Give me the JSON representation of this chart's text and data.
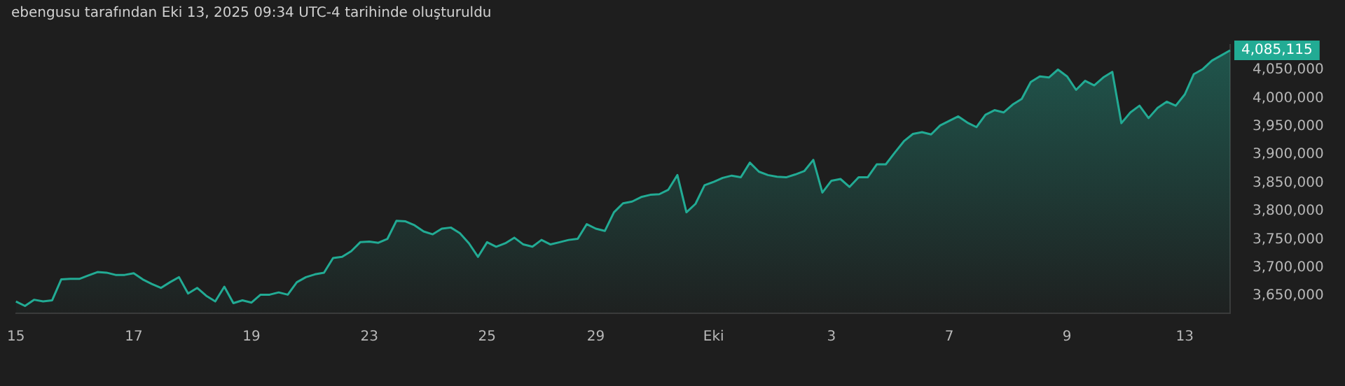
{
  "chart_data": {
    "type": "area",
    "title": "ebengusu tarafından Eki 13, 2025 09:34 UTC-4 tarihinde oluşturuldu",
    "categories": [
      "15",
      null,
      null,
      null,
      null,
      null,
      null,
      null,
      null,
      null,
      null,
      null,
      null,
      "17",
      null,
      null,
      null,
      null,
      null,
      null,
      null,
      null,
      null,
      null,
      null,
      null,
      "19",
      null,
      null,
      null,
      null,
      null,
      null,
      null,
      null,
      null,
      null,
      null,
      null,
      "23",
      null,
      null,
      null,
      null,
      null,
      null,
      null,
      null,
      null,
      null,
      null,
      null,
      "25",
      null,
      null,
      null,
      null,
      null,
      null,
      null,
      null,
      null,
      null,
      null,
      "29",
      null,
      null,
      null,
      null,
      null,
      null,
      null,
      null,
      null,
      null,
      null,
      null,
      "Eki",
      null,
      null,
      null,
      null,
      null,
      null,
      null,
      null,
      null,
      null,
      null,
      null,
      "3",
      null,
      null,
      null,
      null,
      null,
      null,
      null,
      null,
      null,
      null,
      null,
      null,
      "7",
      null,
      null,
      null,
      null,
      null,
      null,
      null,
      null,
      null,
      null,
      null,
      null,
      "9",
      null,
      null,
      null,
      null,
      null,
      null,
      null,
      null,
      null,
      null,
      null,
      null,
      "13",
      null,
      null,
      null,
      null,
      null
    ],
    "series": [
      {
        "color": "#22ab94",
        "values": [
          3640000,
          3632000,
          3643000,
          3640000,
          3642000,
          3679000,
          3680000,
          3680000,
          3686000,
          3692000,
          3691000,
          3687000,
          3687000,
          3690000,
          3679000,
          3671000,
          3664000,
          3674000,
          3683000,
          3654000,
          3664000,
          3650000,
          3640000,
          3666000,
          3637000,
          3642000,
          3638000,
          3652000,
          3652000,
          3656000,
          3652000,
          3674000,
          3683000,
          3688000,
          3691000,
          3717000,
          3719000,
          3729000,
          3745000,
          3746000,
          3744000,
          3751000,
          3783000,
          3782000,
          3775000,
          3764000,
          3759000,
          3769000,
          3771000,
          3761000,
          3743000,
          3719000,
          3745000,
          3737000,
          3743000,
          3753000,
          3741000,
          3737000,
          3749000,
          3741000,
          3745000,
          3749000,
          3751000,
          3777000,
          3769000,
          3765000,
          3798000,
          3814000,
          3817000,
          3825000,
          3829000,
          3830000,
          3838000,
          3864000,
          3798000,
          3813000,
          3846000,
          3852000,
          3859000,
          3863000,
          3860000,
          3886000,
          3870000,
          3864000,
          3861000,
          3860000,
          3865000,
          3871000,
          3891000,
          3833000,
          3854000,
          3857000,
          3843000,
          3860000,
          3860000,
          3883000,
          3883000,
          3904000,
          3924000,
          3937000,
          3940000,
          3936000,
          3952000,
          3960000,
          3968000,
          3957000,
          3949000,
          3971000,
          3979000,
          3975000,
          3989000,
          3999000,
          4029000,
          4039000,
          4037000,
          4051000,
          4039000,
          4015000,
          4031000,
          4023000,
          4037000,
          4047000,
          3956000,
          3975000,
          3987000,
          3965000,
          3983000,
          3994000,
          3987000,
          4007000,
          4043000,
          4052000,
          4067000,
          4076000,
          4085115
        ],
        "value_labels": [
          null,
          null,
          null,
          null,
          null,
          null,
          null,
          null,
          null,
          null,
          null,
          null,
          null,
          null,
          null,
          null,
          null,
          null,
          null,
          null,
          null,
          null,
          null,
          null,
          null,
          null,
          null,
          null,
          null,
          null,
          null,
          null,
          null,
          null,
          null,
          null,
          null,
          null,
          null,
          null,
          null,
          null,
          null,
          null,
          null,
          null,
          null,
          null,
          null,
          null,
          null,
          null,
          null,
          null,
          null,
          null,
          null,
          null,
          null,
          null,
          null,
          null,
          null,
          null,
          null,
          null,
          null,
          null,
          null,
          null,
          null,
          null,
          null,
          null,
          null,
          null,
          null,
          null,
          null,
          null,
          null,
          null,
          null,
          null,
          null,
          null,
          null,
          null,
          null,
          null,
          null,
          null,
          null,
          null,
          null,
          null,
          null,
          null,
          null,
          null,
          null,
          null,
          null,
          null,
          null,
          null,
          null,
          null,
          null,
          null,
          null,
          null,
          null,
          null,
          null,
          null,
          null,
          null,
          null,
          null,
          null,
          null,
          null,
          null,
          null,
          null,
          null,
          null,
          null,
          null,
          null,
          null,
          null,
          null,
          "4,085,115"
        ]
      }
    ],
    "ylim": [
      3619000,
      4095000
    ],
    "yticks": [
      {
        "value": 3650000,
        "label": "3,650,000"
      },
      {
        "value": 3700000,
        "label": "3,700,000"
      },
      {
        "value": 3750000,
        "label": "3,750,000"
      },
      {
        "value": 3800000,
        "label": "3,800,000"
      },
      {
        "value": 3850000,
        "label": "3,850,000"
      },
      {
        "value": 3900000,
        "label": "3,900,000"
      },
      {
        "value": 3950000,
        "label": "3,950,000"
      },
      {
        "value": 4000000,
        "label": "4,000,000"
      },
      {
        "value": 4050000,
        "label": "4,050,000"
      }
    ],
    "marker": "none",
    "line_style": "solid",
    "grid": false,
    "legend": false
  }
}
